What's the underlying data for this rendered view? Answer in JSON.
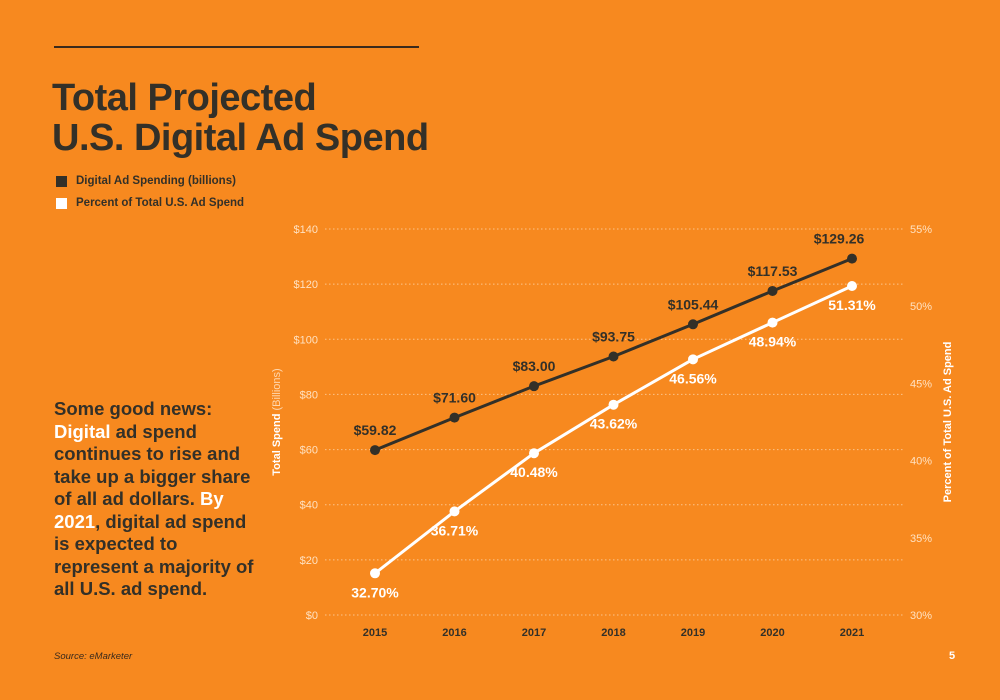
{
  "title_line1": "Total Projected",
  "title_line2": "U.S. Digital Ad Spend",
  "legend": [
    {
      "label": "Digital Ad Spending (billions)",
      "color": "#333028"
    },
    {
      "label": "Percent of Total U.S. Ad Spend",
      "color": "#ffffff"
    }
  ],
  "callout": {
    "p1": "Some good news: ",
    "p2": "Digital",
    "p3": " ad spend continues to rise and take up a bigger share of all ad dollars. ",
    "p4": "By 2021",
    "p5": ", digital ad spend is expected to represent a majority of all U.S. ad spend."
  },
  "source": "Source: eMarketer",
  "page_number": "5",
  "colors": {
    "background": "#F7891F",
    "dark": "#333028",
    "light": "#ffffff",
    "grid": "#FBC48B"
  },
  "chart_data": {
    "type": "line",
    "categories": [
      "2015",
      "2016",
      "2017",
      "2018",
      "2019",
      "2020",
      "2021"
    ],
    "series": [
      {
        "name": "Digital Ad Spending (billions)",
        "axis": "left",
        "values": [
          59.82,
          71.6,
          83.0,
          93.75,
          105.44,
          117.53,
          129.26
        ],
        "labels": [
          "$59.82",
          "$71.60",
          "$83.00",
          "$93.75",
          "$105.44",
          "$117.53",
          "$129.26"
        ],
        "color": "#333028"
      },
      {
        "name": "Percent of Total U.S. Ad Spend",
        "axis": "right",
        "values": [
          32.7,
          36.71,
          40.48,
          43.62,
          46.56,
          48.94,
          51.31
        ],
        "labels": [
          "32.70%",
          "36.71%",
          "40.48%",
          "43.62%",
          "46.56%",
          "48.94%",
          "51.31%"
        ],
        "color": "#ffffff"
      }
    ],
    "left_axis": {
      "label_bold": "Total Spend",
      "label_light": " (Billions)",
      "ylim": [
        0,
        140
      ],
      "ticks": [
        0,
        20,
        40,
        60,
        80,
        100,
        120,
        140
      ],
      "tick_labels": [
        "$0",
        "$20",
        "$40",
        "$60",
        "$80",
        "$100",
        "$120",
        "$140"
      ]
    },
    "right_axis": {
      "label": "Percent of Total U.S. Ad Spend",
      "ylim": [
        30,
        55
      ],
      "ticks": [
        30,
        35,
        40,
        45,
        50,
        55
      ],
      "tick_labels": [
        "30%",
        "35%",
        "40%",
        "45%",
        "50%",
        "55%"
      ]
    },
    "grid": true
  }
}
